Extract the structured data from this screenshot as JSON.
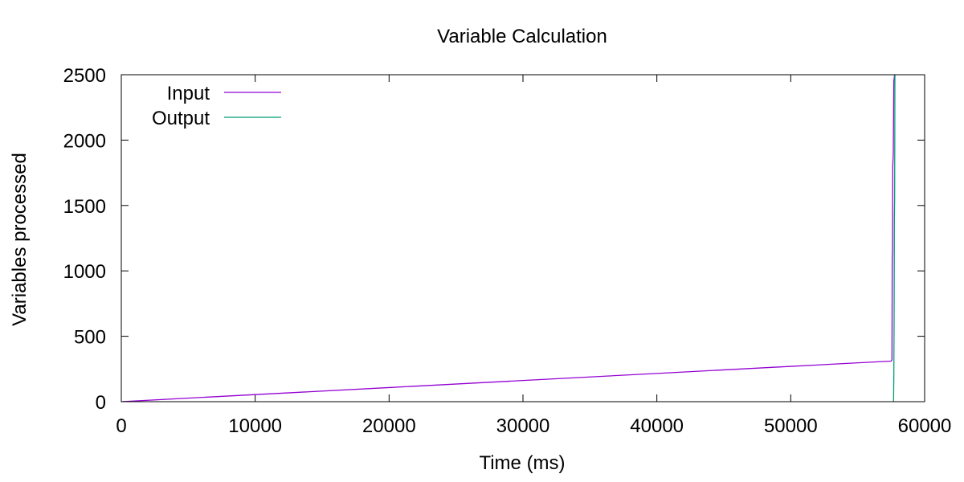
{
  "chart_data": {
    "type": "line",
    "title": "Variable Calculation",
    "xlabel": "Time (ms)",
    "ylabel": "Variables processed",
    "xlim": [
      0,
      60000
    ],
    "ylim": [
      0,
      2500
    ],
    "xticks": [
      0,
      10000,
      20000,
      30000,
      40000,
      50000,
      60000
    ],
    "yticks": [
      0,
      500,
      1000,
      1500,
      2000,
      2500
    ],
    "grid": false,
    "legend_position": "top-left",
    "series": [
      {
        "name": "Input",
        "color": "#9400D3",
        "points": [
          [
            0,
            0
          ],
          [
            10000,
            54
          ],
          [
            20000,
            108
          ],
          [
            30000,
            162
          ],
          [
            40000,
            216
          ],
          [
            50000,
            270
          ],
          [
            57500,
            310
          ],
          [
            57560,
            320
          ],
          [
            57580,
            1100
          ],
          [
            57600,
            1150
          ],
          [
            57620,
            1800
          ],
          [
            57660,
            1900
          ],
          [
            57700,
            2450
          ],
          [
            57760,
            2500
          ]
        ]
      },
      {
        "name": "Output",
        "color": "#009E73",
        "points": [
          [
            57680,
            0
          ],
          [
            57700,
            200
          ],
          [
            57720,
            640
          ],
          [
            57740,
            1400
          ],
          [
            57760,
            1550
          ],
          [
            57780,
            2500
          ]
        ]
      }
    ]
  }
}
